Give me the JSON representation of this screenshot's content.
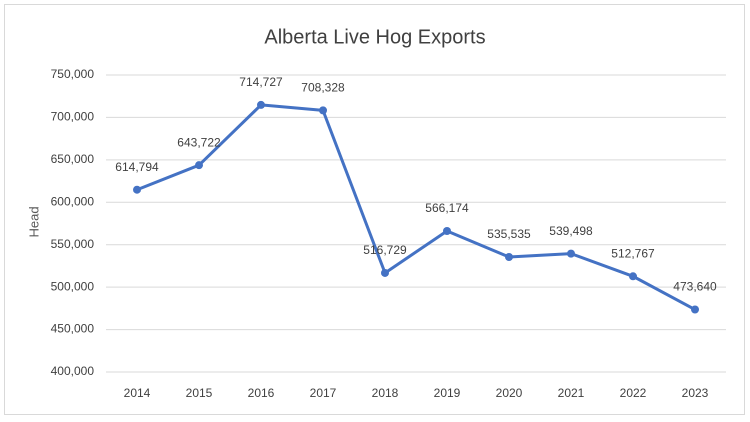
{
  "chart_data": {
    "type": "line",
    "title": "Alberta Live Hog Exports",
    "y_label": "Head",
    "categories": [
      "2014",
      "2015",
      "2016",
      "2017",
      "2018",
      "2019",
      "2020",
      "2021",
      "2022",
      "2023"
    ],
    "series": [
      {
        "name": "Alberta Live Hog Exports",
        "color": "#4472c4",
        "values": [
          614794,
          643722,
          714727,
          708328,
          516729,
          566174,
          535535,
          539498,
          512767,
          473640
        ],
        "value_labels": [
          "614,794",
          "643,722",
          "714,727",
          "708,328",
          "516,729",
          "566,174",
          "535,535",
          "539,498",
          "512,767",
          "473,640"
        ]
      }
    ],
    "ylim": [
      400000,
      750000
    ],
    "yticks": [
      {
        "value": 400000,
        "label": "400,000"
      },
      {
        "value": 450000,
        "label": "450,000"
      },
      {
        "value": 500000,
        "label": "500,000"
      },
      {
        "value": 550000,
        "label": "550,000"
      },
      {
        "value": 600000,
        "label": "600,000"
      },
      {
        "value": 650000,
        "label": "650,000"
      },
      {
        "value": 700000,
        "label": "700,000"
      },
      {
        "value": 750000,
        "label": "750,000"
      }
    ],
    "grid": true
  }
}
